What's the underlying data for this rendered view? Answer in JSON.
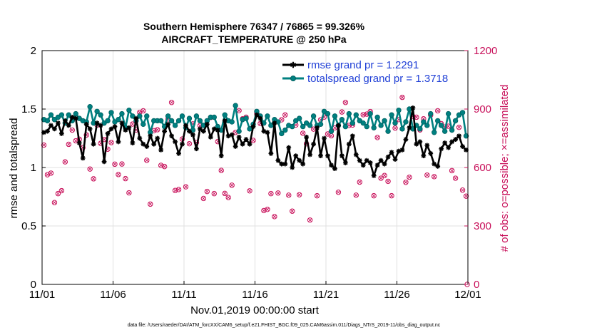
{
  "chart_data": {
    "type": "line",
    "title": "Southern Hemisphere 76347 / 76865 = 99.326%",
    "subtitle": "AIRCRAFT_TEMPERATURE @ 250 hPa",
    "xlabel": "Nov.01,2019 00:00:00 start",
    "ylabel": "rmse and totalspread",
    "y2label": "# of obs: o=possible; ×=assimilated",
    "footer": "data file: /Users/raeder/DAI/ATM_forcXX/CAM6_setup/f.e21.FHIST_BGC.f09_025.CAM6assim.011/Diags_NTrS_2019-11/obs_diag_output.nc",
    "xlim": [
      0,
      30
    ],
    "ylim": [
      0,
      2
    ],
    "y2lim": [
      0,
      1200
    ],
    "xticks": [
      0,
      5,
      10,
      15,
      20,
      25,
      30
    ],
    "xtick_labels": [
      "11/01",
      "11/06",
      "11/11",
      "11/16",
      "11/21",
      "11/26",
      "12/01"
    ],
    "yticks": [
      0,
      0.5,
      1,
      1.5,
      2
    ],
    "ytick_labels": [
      "0",
      "0.5",
      "1",
      "1.5",
      "2"
    ],
    "y2ticks": [
      0,
      300,
      600,
      900,
      1200
    ],
    "y2tick_labels": [
      "0",
      "300",
      "600",
      "900",
      "1200"
    ],
    "series": [
      {
        "name": "rmse grand pr = 1.2291",
        "color": "#000000",
        "x": [
          0.125,
          0.375,
          0.625,
          0.875,
          1.125,
          1.375,
          1.625,
          1.875,
          2.125,
          2.375,
          2.625,
          2.875,
          3.125,
          3.375,
          3.625,
          3.875,
          4.125,
          4.375,
          4.625,
          4.875,
          5.125,
          5.375,
          5.625,
          5.875,
          6.125,
          6.375,
          6.625,
          6.875,
          7.125,
          7.375,
          7.625,
          7.875,
          8.125,
          8.375,
          8.625,
          8.875,
          9.125,
          9.375,
          9.625,
          9.875,
          10.125,
          10.375,
          10.625,
          10.875,
          11.125,
          11.375,
          11.625,
          11.875,
          12.125,
          12.375,
          12.625,
          12.875,
          13.125,
          13.375,
          13.625,
          13.875,
          14.125,
          14.375,
          14.625,
          14.875,
          15.125,
          15.375,
          15.625,
          15.875,
          16.125,
          16.375,
          16.625,
          16.875,
          17.125,
          17.375,
          17.625,
          17.875,
          18.125,
          18.375,
          18.625,
          18.875,
          19.125,
          19.375,
          19.625,
          19.875,
          20.125,
          20.375,
          20.625,
          20.875,
          21.125,
          21.375,
          21.625,
          21.875,
          22.125,
          22.375,
          22.625,
          22.875,
          23.125,
          23.375,
          23.625,
          23.875,
          24.125,
          24.375,
          24.625,
          24.875,
          25.125,
          25.375,
          25.625,
          25.875,
          26.125,
          26.375,
          26.625,
          26.875,
          27.125,
          27.375,
          27.625,
          27.875,
          28.125,
          28.375,
          28.625,
          28.875,
          29.125,
          29.375,
          29.625,
          29.875
        ],
        "values": [
          1.3,
          1.31,
          1.36,
          1.33,
          1.38,
          1.29,
          1.4,
          1.36,
          1.43,
          1.42,
          1.21,
          1.08,
          1.37,
          1.33,
          1.2,
          1.38,
          1.36,
          1.05,
          1.29,
          1.33,
          1.35,
          1.22,
          1.38,
          1.32,
          1.34,
          1.21,
          1.42,
          1.25,
          1.2,
          1.18,
          1.27,
          1.2,
          1.25,
          1.15,
          1.31,
          1.37,
          1.27,
          1.22,
          1.12,
          1.2,
          1.36,
          1.31,
          1.28,
          1.16,
          1.33,
          1.31,
          1.37,
          1.26,
          1.33,
          1.32,
          1.1,
          1.4,
          1.27,
          1.28,
          1.18,
          1.26,
          1.2,
          1.24,
          1.2,
          1.35,
          1.45,
          1.42,
          1.31,
          1.3,
          1.12,
          1.38,
          1.06,
          1.03,
          1.03,
          1.17,
          1.0,
          1.1,
          1.06,
          1.03,
          1.26,
          1.11,
          1.2,
          1.34,
          1.1,
          1.25,
          1.1,
          1.02,
          0.99,
          1.36,
          1.1,
          1.04,
          1.2,
          1.27,
          1.11,
          1.06,
          1.02,
          1.06,
          1.04,
          0.93,
          1.02,
          1.06,
          1.03,
          1.09,
          1.13,
          1.07,
          1.14,
          1.15,
          1.24,
          1.34,
          1.51,
          1.2,
          1.22,
          1.1,
          1.19,
          1.12,
          1.03,
          1.01,
          1.16,
          1.21,
          1.17,
          1.22,
          1.24,
          1.27,
          1.18,
          1.15
        ]
      },
      {
        "name": "totalspread grand pr = 1.3718",
        "color": "#008080",
        "x": [
          0.125,
          0.375,
          0.625,
          0.875,
          1.125,
          1.375,
          1.625,
          1.875,
          2.125,
          2.375,
          2.625,
          2.875,
          3.125,
          3.375,
          3.625,
          3.875,
          4.125,
          4.375,
          4.625,
          4.875,
          5.125,
          5.375,
          5.625,
          5.875,
          6.125,
          6.375,
          6.625,
          6.875,
          7.125,
          7.375,
          7.625,
          7.875,
          8.125,
          8.375,
          8.625,
          8.875,
          9.125,
          9.375,
          9.625,
          9.875,
          10.125,
          10.375,
          10.625,
          10.875,
          11.125,
          11.375,
          11.625,
          11.875,
          12.125,
          12.375,
          12.625,
          12.875,
          13.125,
          13.375,
          13.625,
          13.875,
          14.125,
          14.375,
          14.625,
          14.875,
          15.125,
          15.375,
          15.625,
          15.875,
          16.125,
          16.375,
          16.625,
          16.875,
          17.125,
          17.375,
          17.625,
          17.875,
          18.125,
          18.375,
          18.625,
          18.875,
          19.125,
          19.375,
          19.625,
          19.875,
          20.125,
          20.375,
          20.625,
          20.875,
          21.125,
          21.375,
          21.625,
          21.875,
          22.125,
          22.375,
          22.625,
          22.875,
          23.125,
          23.375,
          23.625,
          23.875,
          24.125,
          24.375,
          24.625,
          24.875,
          25.125,
          25.375,
          25.625,
          25.875,
          26.125,
          26.375,
          26.625,
          26.875,
          27.125,
          27.375,
          27.625,
          27.875,
          28.125,
          28.375,
          28.625,
          28.875,
          29.125,
          29.375,
          29.625,
          29.875
        ],
        "values": [
          1.41,
          1.4,
          1.45,
          1.41,
          1.43,
          1.45,
          1.38,
          1.45,
          1.4,
          1.46,
          1.42,
          1.4,
          1.39,
          1.52,
          1.38,
          1.48,
          1.45,
          1.38,
          1.4,
          1.47,
          1.39,
          1.41,
          1.46,
          1.34,
          1.49,
          1.44,
          1.4,
          1.44,
          1.37,
          1.44,
          1.3,
          1.4,
          1.4,
          1.4,
          1.35,
          1.44,
          1.4,
          1.36,
          1.4,
          1.44,
          1.34,
          1.42,
          1.32,
          1.44,
          1.4,
          1.36,
          1.4,
          1.43,
          1.43,
          1.35,
          1.32,
          1.45,
          1.4,
          1.39,
          1.53,
          1.31,
          1.41,
          1.42,
          1.33,
          1.37,
          1.48,
          1.44,
          1.38,
          1.44,
          1.36,
          1.41,
          1.39,
          1.29,
          1.32,
          1.36,
          1.35,
          1.4,
          1.42,
          1.35,
          1.38,
          1.36,
          1.44,
          1.36,
          1.37,
          1.48,
          1.46,
          1.31,
          1.44,
          1.36,
          1.41,
          1.35,
          1.46,
          1.38,
          1.45,
          1.4,
          1.38,
          1.35,
          1.46,
          1.34,
          1.43,
          1.36,
          1.4,
          1.31,
          1.45,
          1.38,
          1.49,
          1.33,
          1.39,
          1.5,
          1.33,
          1.36,
          1.33,
          1.39,
          1.36,
          1.46,
          1.3,
          1.4,
          1.36,
          1.31,
          1.46,
          1.32,
          1.4,
          1.45,
          1.47,
          1.27
        ]
      }
    ],
    "obs_possible": {
      "name": "possible",
      "color": "#c8105a",
      "marker": "o",
      "values": [
        715,
        563,
        571,
        420,
        466,
        481,
        629,
        719,
        792,
        737,
        745,
        702,
        767,
        592,
        542,
        818,
        724,
        744,
        694,
        728,
        617,
        564,
        618,
        543,
        470,
        823,
        793,
        883,
        891,
        637,
        412,
        789,
        794,
        611,
        605,
        849,
        934,
        482,
        487,
        746,
        501,
        722,
        824,
        728,
        815,
        441,
        477,
        857,
        466,
        733,
        585,
        467,
        446,
        509,
        780,
        892,
        850,
        858,
        480,
        739,
        880,
        826,
        379,
        385,
        466,
        348,
        469,
        845,
        870,
        458,
        376,
        818,
        460,
        776,
        722,
        330,
        797,
        455,
        845,
        859,
        772,
        763,
        804,
        473,
        885,
        934,
        816,
        818,
        458,
        525,
        871,
        874,
        887,
        455,
        754,
        545,
        559,
        529,
        455,
        802,
        846,
        960,
        524,
        550,
        862,
        858,
        793,
        850,
        561,
        869,
        553,
        891,
        825,
        808,
        812,
        584,
        545,
        806,
        484,
        453
      ],
      "x": [
        0.125,
        0.375,
        0.625,
        0.875,
        1.125,
        1.375,
        1.625,
        1.875,
        2.125,
        2.375,
        2.625,
        2.875,
        3.125,
        3.375,
        3.625,
        3.875,
        4.125,
        4.375,
        4.625,
        4.875,
        5.125,
        5.375,
        5.625,
        5.875,
        6.125,
        6.375,
        6.625,
        6.875,
        7.125,
        7.375,
        7.625,
        7.875,
        8.125,
        8.375,
        8.625,
        8.875,
        9.125,
        9.375,
        9.625,
        9.875,
        10.125,
        10.375,
        10.625,
        10.875,
        11.125,
        11.375,
        11.625,
        11.875,
        12.125,
        12.375,
        12.625,
        12.875,
        13.125,
        13.375,
        13.625,
        13.875,
        14.125,
        14.375,
        14.625,
        14.875,
        15.125,
        15.375,
        15.625,
        15.875,
        16.125,
        16.375,
        16.625,
        16.875,
        17.125,
        17.375,
        17.625,
        17.875,
        18.125,
        18.375,
        18.625,
        18.875,
        19.125,
        19.375,
        19.625,
        19.875,
        20.125,
        20.375,
        20.625,
        20.875,
        21.125,
        21.375,
        21.625,
        21.875,
        22.125,
        22.375,
        22.625,
        22.875,
        23.125,
        23.375,
        23.625,
        23.875,
        24.125,
        24.375,
        24.625,
        24.875,
        25.125,
        25.375,
        25.625,
        25.875,
        26.125,
        26.375,
        26.625,
        26.875,
        27.125,
        27.375,
        27.625,
        27.875,
        28.125,
        28.375,
        28.625,
        28.875,
        29.125,
        29.375,
        29.625,
        29.875
      ]
    }
  },
  "legend": {
    "rmse": "rmse grand pr = 1.2291",
    "totalspread": "totalspread grand pr = 1.3718"
  },
  "colors": {
    "rmse": "#000000",
    "totalspread": "#008080",
    "obs": "#c8105a",
    "legend_text": "#1f3fd6"
  }
}
